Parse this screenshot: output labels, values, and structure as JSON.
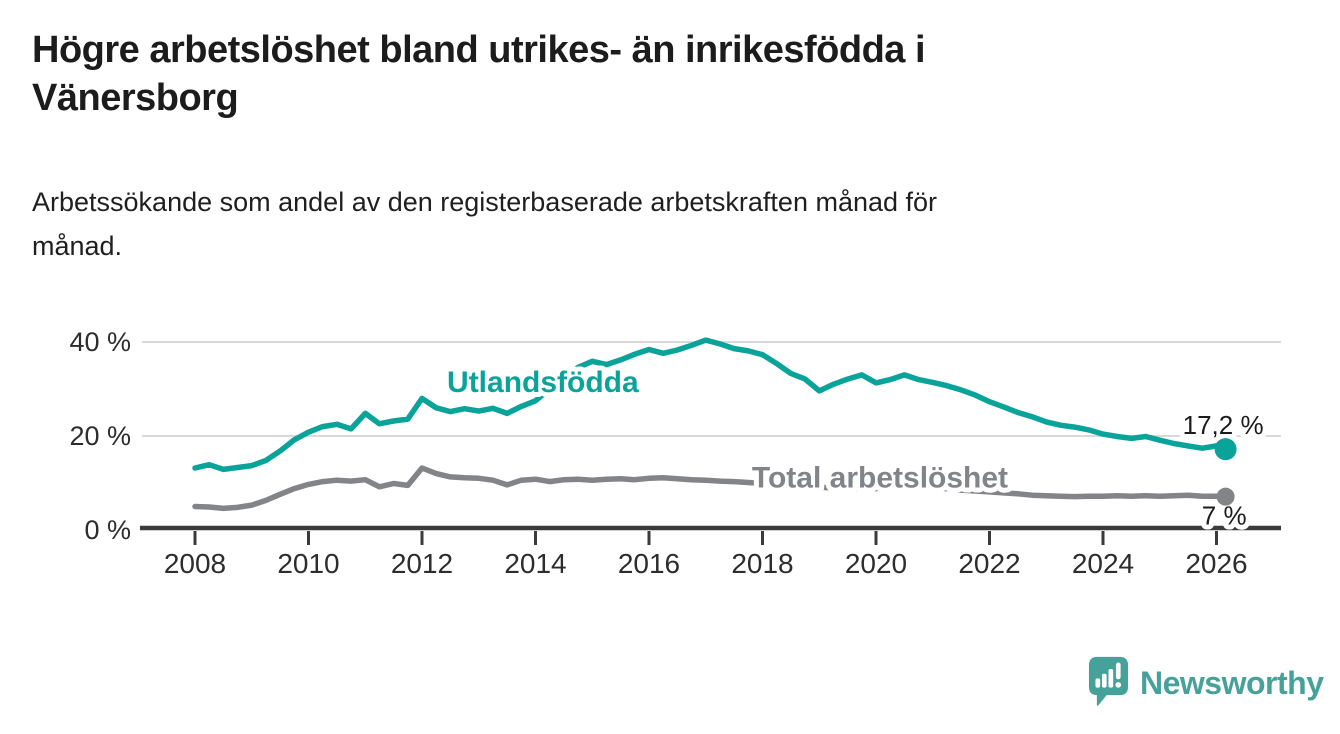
{
  "header": {
    "title_lines": [
      "Högre arbetslöshet bland utrikes- än inrikesfödda i",
      "Vänersborg"
    ],
    "subtitle_lines": [
      "Arbetssökande som andel av den registerbaserade arbetskraften månad för",
      "månad."
    ]
  },
  "chart_data": {
    "type": "line",
    "title": "Högre arbetslöshet bland utrikes- än inrikesfödda i Vänersborg",
    "subtitle": "Arbetssökande som andel av den registerbaserade arbetskraften månad för månad.",
    "unit": "%",
    "xlim": [
      2007.05,
      2027.2
    ],
    "ylim": [
      0,
      43
    ],
    "grid": "horizontal",
    "legend_position": "inline-labels",
    "x_ticks": [
      2008,
      2010,
      2012,
      2014,
      2016,
      2018,
      2020,
      2022,
      2024,
      2026
    ],
    "x_tick_labels": [
      "2008",
      "2010",
      "2012",
      "2014",
      "2016",
      "2018",
      "2020",
      "2022",
      "2024",
      "2026"
    ],
    "y_ticks": [
      0,
      20,
      40
    ],
    "y_tick_labels": [
      "0 %",
      "20 %",
      "40 %"
    ],
    "colors": {
      "axis": "#3b3b3b",
      "grid": "#d9d9d9",
      "tick_text": "#2d2d2d",
      "value_label_text": "#1c1c1c"
    },
    "x": [
      2008,
      2008.25,
      2008.5,
      2008.75,
      2009,
      2009.25,
      2009.5,
      2009.75,
      2010,
      2010.25,
      2010.5,
      2010.75,
      2011,
      2011.25,
      2011.5,
      2011.75,
      2012,
      2012.25,
      2012.5,
      2012.75,
      2013,
      2013.25,
      2013.5,
      2013.75,
      2014,
      2014.25,
      2014.5,
      2014.75,
      2015,
      2015.25,
      2015.5,
      2015.75,
      2016,
      2016.25,
      2016.5,
      2016.75,
      2017,
      2017.25,
      2017.5,
      2017.75,
      2018,
      2018.25,
      2018.5,
      2018.75,
      2019,
      2019.25,
      2019.5,
      2019.75,
      2020,
      2020.25,
      2020.5,
      2020.75,
      2021,
      2021.25,
      2021.5,
      2021.75,
      2022,
      2022.25,
      2022.5,
      2022.75,
      2023,
      2023.25,
      2023.5,
      2023.75,
      2024,
      2024.25,
      2024.5,
      2024.75,
      2025,
      2025.25,
      2025.5,
      2025.75,
      2026,
      2026.16
    ],
    "series": [
      {
        "name": "Utlandsfödda",
        "color": "#0aa39a",
        "end_label": "17,2 %",
        "end_label_position": "above",
        "label_anchor": {
          "x": 2014.13,
          "y": 31.5
        },
        "end_dot_radius": 11,
        "values": [
          13.2,
          13.9,
          12.9,
          13.3,
          13.7,
          14.8,
          16.8,
          19.2,
          20.8,
          22,
          22.5,
          21.5,
          24.8,
          22.6,
          23.2,
          23.6,
          28,
          26,
          25.2,
          25.8,
          25.3,
          25.9,
          24.8,
          26.3,
          27.5,
          30,
          32.5,
          34.6,
          35.9,
          35.2,
          36.2,
          37.4,
          38.4,
          37.6,
          38.3,
          39.3,
          40.4,
          39.6,
          38.6,
          38.1,
          37.3,
          35.4,
          33.3,
          32.1,
          29.6,
          31,
          32.1,
          33,
          31.3,
          32,
          33,
          32,
          31.4,
          30.7,
          29.8,
          28.7,
          27.3,
          26.2,
          25,
          24.1,
          23,
          22.3,
          21.9,
          21.3,
          20.4,
          19.9,
          19.5,
          19.9,
          19.1,
          18.4,
          17.9,
          17.4,
          17.9,
          17.2
        ]
      },
      {
        "name": "Total arbetslöshet",
        "color": "#838488",
        "end_label": "7 %",
        "end_label_position": "below",
        "label_anchor": {
          "x": 2020.07,
          "y": 11.2
        },
        "end_dot_radius": 9,
        "values": [
          5,
          4.9,
          4.6,
          4.8,
          5.3,
          6.3,
          7.6,
          8.8,
          9.7,
          10.3,
          10.6,
          10.4,
          10.7,
          9.2,
          9.9,
          9.5,
          13.2,
          12,
          11.3,
          11.1,
          11,
          10.6,
          9.6,
          10.6,
          10.8,
          10.3,
          10.7,
          10.8,
          10.6,
          10.8,
          10.9,
          10.7,
          11,
          11.1,
          10.9,
          10.7,
          10.6,
          10.4,
          10.3,
          10.1,
          9.9,
          9.7,
          9.5,
          9.3,
          9.1,
          9,
          8.9,
          8.8,
          8.8,
          9.2,
          9.4,
          9.2,
          9,
          8.8,
          8.5,
          8.3,
          8.1,
          7.9,
          7.7,
          7.4,
          7.3,
          7.2,
          7.1,
          7.2,
          7.2,
          7.3,
          7.2,
          7.3,
          7.2,
          7.3,
          7.4,
          7.2,
          7.2,
          7.1
        ]
      }
    ]
  },
  "footer": {
    "brand": "Newsworthy"
  }
}
